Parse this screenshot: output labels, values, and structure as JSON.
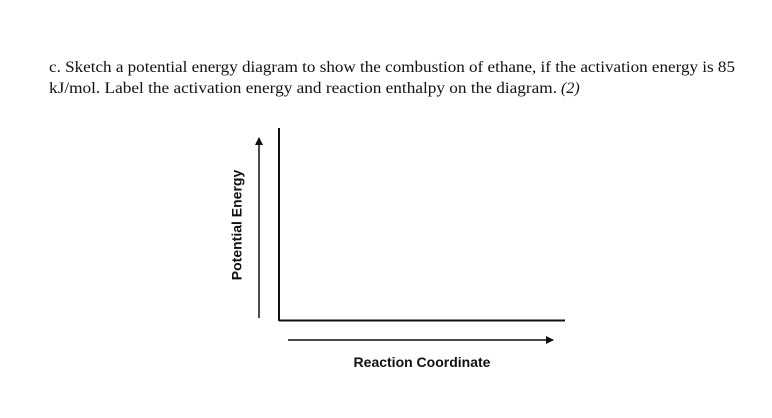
{
  "question": {
    "line1": "c. Sketch a potential energy diagram to show the combustion of ethane, if the activation energy is 85",
    "line2": "kJ/mol. Label the activation energy and reaction enthalpy on the diagram.",
    "marks": "(2)"
  },
  "diagram": {
    "y_label": "Potential Energy",
    "x_label": "Reaction Coordinate"
  }
}
